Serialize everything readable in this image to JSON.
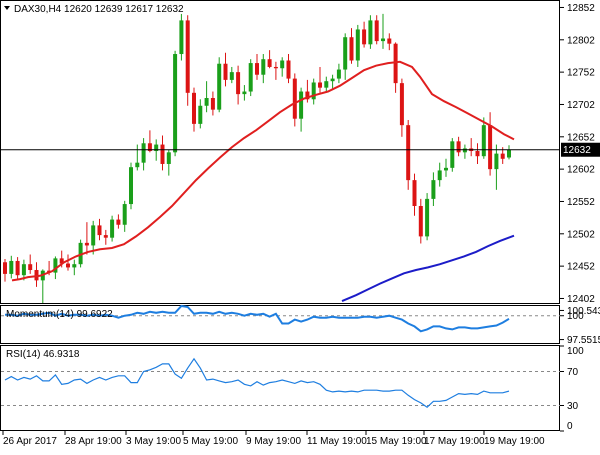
{
  "header": {
    "symbol_line": "DAX30,H4  12620 12639 12617 12632",
    "momentum_label": "Momentum(14) 99.6922",
    "rsi_label": "RSI(14) 46.9318"
  },
  "chart_data": [
    {
      "type": "candlestick",
      "symbol": "DAX30",
      "timeframe": "H4",
      "ohlc_last": {
        "open": 12620,
        "high": 12639,
        "low": 12617,
        "close": 12632
      },
      "x_tick_labels": [
        "26 Apr 2017",
        "28 Apr 19:00",
        "3 May 19:00",
        "5 May 19:00",
        "9 May 19:00",
        "11 May 19:00",
        "15 May 19:00",
        "17 May 19:00",
        "19 May 19:00"
      ],
      "y_tick_labels": [
        "12852",
        "12802",
        "12752",
        "12702",
        "12652",
        "12602",
        "12552",
        "12502",
        "12452",
        "12402"
      ],
      "ylim": [
        12395,
        12862
      ],
      "current_price_label": "12632",
      "colors": {
        "bull": "#1a9f1a",
        "bear": "#dc1414",
        "sma_fast": "#e01f1f",
        "sma_slow": "#1c1cc8",
        "price_line": "#000000"
      },
      "candles": [
        [
          12458,
          12463,
          12428,
          12440
        ],
        [
          12440,
          12468,
          12433,
          12460
        ],
        [
          12460,
          12466,
          12432,
          12438
        ],
        [
          12438,
          12462,
          12430,
          12455
        ],
        [
          12455,
          12470,
          12440,
          12446
        ],
        [
          12446,
          12458,
          12420,
          12430
        ],
        [
          12430,
          12447,
          12395,
          12445
        ],
        [
          12445,
          12460,
          12438,
          12442
        ],
        [
          12442,
          12467,
          12432,
          12464
        ],
        [
          12464,
          12476,
          12450,
          12456
        ],
        [
          12456,
          12470,
          12445,
          12450
        ],
        [
          12450,
          12462,
          12438,
          12455
        ],
        [
          12455,
          12493,
          12450,
          12488
        ],
        [
          12488,
          12520,
          12470,
          12484
        ],
        [
          12484,
          12522,
          12470,
          12515
        ],
        [
          12515,
          12525,
          12492,
          12500
        ],
        [
          12500,
          12508,
          12485,
          12496
        ],
        [
          12496,
          12530,
          12490,
          12524
        ],
        [
          12524,
          12532,
          12510,
          12516
        ],
        [
          12516,
          12553,
          12505,
          12548
        ],
        [
          12548,
          12612,
          12540,
          12605
        ],
        [
          12605,
          12640,
          12600,
          12612
        ],
        [
          12612,
          12650,
          12600,
          12642
        ],
        [
          12642,
          12662,
          12628,
          12630
        ],
        [
          12630,
          12648,
          12615,
          12640
        ],
        [
          12640,
          12654,
          12600,
          12610
        ],
        [
          12610,
          12632,
          12592,
          12628
        ],
        [
          12628,
          12785,
          12622,
          12780
        ],
        [
          12780,
          12842,
          12770,
          12832
        ],
        [
          12832,
          12840,
          12700,
          12720
        ],
        [
          12720,
          12728,
          12660,
          12672
        ],
        [
          12672,
          12710,
          12665,
          12700
        ],
        [
          12700,
          12738,
          12690,
          12712
        ],
        [
          12712,
          12722,
          12685,
          12694
        ],
        [
          12694,
          12775,
          12690,
          12765
        ],
        [
          12765,
          12782,
          12730,
          12740
        ],
        [
          12740,
          12760,
          12735,
          12752
        ],
        [
          12752,
          12762,
          12702,
          12718
        ],
        [
          12718,
          12732,
          12708,
          12722
        ],
        [
          12722,
          12772,
          12715,
          12766
        ],
        [
          12766,
          12780,
          12740,
          12748
        ],
        [
          12748,
          12780,
          12735,
          12772
        ],
        [
          12772,
          12786,
          12758,
          12760
        ],
        [
          12760,
          12768,
          12740,
          12758
        ],
        [
          12758,
          12775,
          12745,
          12770
        ],
        [
          12770,
          12780,
          12735,
          12742
        ],
        [
          12742,
          12750,
          12668,
          12680
        ],
        [
          12680,
          12728,
          12660,
          12722
        ],
        [
          12722,
          12740,
          12705,
          12710
        ],
        [
          12710,
          12742,
          12702,
          12736
        ],
        [
          12736,
          12760,
          12720,
          12728
        ],
        [
          12728,
          12745,
          12720,
          12738
        ],
        [
          12738,
          12748,
          12725,
          12742
        ],
        [
          12742,
          12765,
          12735,
          12756
        ],
        [
          12756,
          12812,
          12740,
          12806
        ],
        [
          12806,
          12820,
          12765,
          12770
        ],
        [
          12770,
          12825,
          12760,
          12818
        ],
        [
          12818,
          12830,
          12790,
          12795
        ],
        [
          12795,
          12840,
          12788,
          12832
        ],
        [
          12832,
          12840,
          12795,
          12800
        ],
        [
          12800,
          12842,
          12788,
          12804
        ],
        [
          12804,
          12812,
          12786,
          12796
        ],
        [
          12796,
          12798,
          12720,
          12735
        ],
        [
          12735,
          12742,
          12652,
          12670
        ],
        [
          12670,
          12678,
          12570,
          12585
        ],
        [
          12585,
          12595,
          12530,
          12545
        ],
        [
          12545,
          12556,
          12487,
          12498
        ],
        [
          12498,
          12565,
          12492,
          12556
        ],
        [
          12556,
          12597,
          12545,
          12585
        ],
        [
          12585,
          12612,
          12575,
          12600
        ],
        [
          12600,
          12618,
          12590,
          12604
        ],
        [
          12604,
          12650,
          12598,
          12645
        ],
        [
          12645,
          12652,
          12622,
          12628
        ],
        [
          12628,
          12640,
          12618,
          12634
        ],
        [
          12634,
          12650,
          12622,
          12630
        ],
        [
          12630,
          12642,
          12610,
          12622
        ],
        [
          12622,
          12682,
          12618,
          12670
        ],
        [
          12670,
          12690,
          12592,
          12602
        ],
        [
          12602,
          12640,
          12570,
          12626
        ],
        [
          12626,
          12636,
          12610,
          12618
        ],
        [
          12620,
          12639,
          12617,
          12632
        ]
      ],
      "sma_fast_points": [
        [
          12,
          12430
        ],
        [
          20,
          12432
        ],
        [
          28,
          12435
        ],
        [
          40,
          12437
        ],
        [
          52,
          12444
        ],
        [
          64,
          12458
        ],
        [
          76,
          12467
        ],
        [
          88,
          12474
        ],
        [
          100,
          12478
        ],
        [
          112,
          12480
        ],
        [
          124,
          12486
        ],
        [
          136,
          12498
        ],
        [
          148,
          12512
        ],
        [
          160,
          12528
        ],
        [
          172,
          12545
        ],
        [
          184,
          12565
        ],
        [
          196,
          12585
        ],
        [
          208,
          12603
        ],
        [
          220,
          12620
        ],
        [
          232,
          12636
        ],
        [
          244,
          12650
        ],
        [
          256,
          12662
        ],
        [
          268,
          12676
        ],
        [
          280,
          12690
        ],
        [
          292,
          12702
        ],
        [
          304,
          12711
        ],
        [
          316,
          12717
        ],
        [
          328,
          12722
        ],
        [
          340,
          12731
        ],
        [
          352,
          12743
        ],
        [
          364,
          12755
        ],
        [
          376,
          12762
        ],
        [
          388,
          12766
        ],
        [
          400,
          12768
        ],
        [
          412,
          12760
        ],
        [
          420,
          12745
        ],
        [
          432,
          12718
        ],
        [
          444,
          12707
        ],
        [
          456,
          12698
        ],
        [
          468,
          12688
        ],
        [
          480,
          12678
        ],
        [
          492,
          12668
        ],
        [
          504,
          12656
        ],
        [
          514,
          12648
        ]
      ],
      "sma_slow_points": [
        [
          342,
          12398
        ],
        [
          356,
          12407
        ],
        [
          368,
          12416
        ],
        [
          380,
          12425
        ],
        [
          392,
          12433
        ],
        [
          404,
          12441
        ],
        [
          416,
          12446
        ],
        [
          428,
          12450
        ],
        [
          440,
          12455
        ],
        [
          452,
          12461
        ],
        [
          464,
          12467
        ],
        [
          476,
          12474
        ],
        [
          488,
          12483
        ],
        [
          500,
          12491
        ],
        [
          514,
          12499
        ]
      ]
    },
    {
      "type": "line",
      "indicator": "Momentum(14)",
      "value": 99.6922,
      "y_tick_labels": [
        "100.5433",
        "100",
        "97.5515"
      ],
      "ylim": [
        97.2,
        101.0
      ],
      "reference_level": 100,
      "color": "#1e7ee0",
      "values": [
        100.1,
        100.1,
        100.0,
        100.2,
        100.1,
        100.1,
        100.2,
        100.3,
        100.0,
        100.2,
        100.0,
        100.1,
        100.1,
        100.0,
        100.1,
        100.0,
        100.1,
        100.0,
        99.8,
        100.0,
        100.1,
        100.3,
        100.2,
        100.4,
        100.3,
        100.4,
        100.3,
        100.3,
        101.0,
        100.9,
        100.2,
        100.3,
        100.3,
        100.2,
        100.4,
        100.2,
        100.3,
        100.2,
        100.0,
        100.2,
        100.1,
        100.2,
        99.9,
        100.2,
        99.2,
        99.2,
        99.6,
        99.4,
        99.6,
        99.9,
        99.8,
        99.8,
        99.9,
        99.8,
        99.8,
        99.8,
        99.8,
        99.9,
        99.9,
        99.8,
        99.9,
        100.0,
        99.8,
        99.6,
        99.2,
        98.9,
        98.4,
        98.6,
        98.9,
        98.9,
        98.7,
        98.6,
        98.8,
        98.8,
        98.7,
        98.7,
        98.8,
        98.9,
        99.0,
        99.3,
        99.69
      ]
    },
    {
      "type": "line",
      "indicator": "RSI(14)",
      "value": 46.9318,
      "y_tick_labels": [
        "100",
        "70",
        "30",
        "0"
      ],
      "ylim": [
        0,
        100
      ],
      "levels": [
        70,
        30
      ],
      "color": "#1e7ee0",
      "values": [
        60,
        64,
        60,
        63,
        61,
        65,
        59,
        59,
        66,
        55,
        56,
        60,
        61,
        56,
        60,
        63,
        60,
        63,
        65,
        65,
        57,
        57,
        70,
        72,
        75,
        79,
        79,
        67,
        62,
        74,
        85,
        74,
        60,
        61,
        59,
        57,
        58,
        60,
        55,
        53,
        58,
        54,
        57,
        58,
        60,
        58,
        56,
        59,
        57,
        58,
        55,
        48,
        46,
        47,
        46,
        47,
        46,
        48,
        48,
        48,
        47,
        47,
        48,
        48,
        42,
        37,
        33,
        28,
        35,
        35,
        36,
        40,
        44,
        43,
        44,
        43,
        47,
        45,
        45,
        45,
        47
      ]
    }
  ]
}
